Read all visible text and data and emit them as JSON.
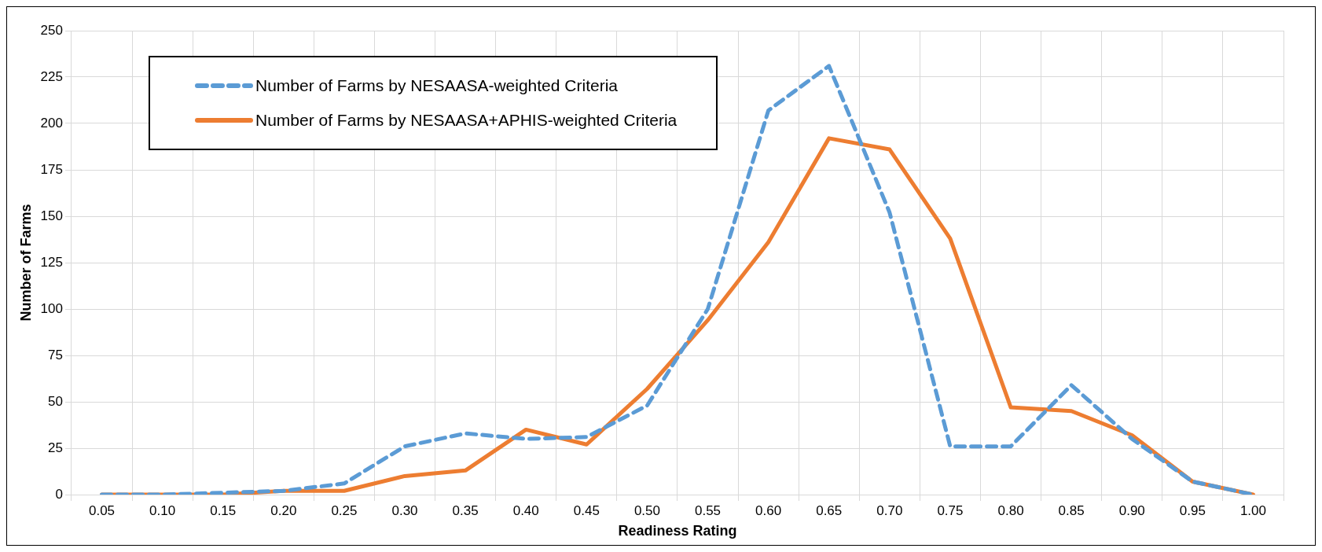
{
  "chart_data": {
    "type": "line",
    "xlabel": "Readiness Rating",
    "ylabel": "Number of Farms",
    "categories": [
      "0.05",
      "0.10",
      "0.15",
      "0.20",
      "0.25",
      "0.30",
      "0.35",
      "0.40",
      "0.45",
      "0.50",
      "0.55",
      "0.60",
      "0.65",
      "0.70",
      "0.75",
      "0.80",
      "0.85",
      "0.90",
      "0.95",
      "1.00"
    ],
    "series": [
      {
        "name": "Number of Farms by NESAASA-weighted Criteria",
        "color": "#5b9bd5",
        "line_style": "dashed",
        "values": [
          0,
          0,
          1,
          2,
          6,
          26,
          33,
          30,
          31,
          48,
          100,
          207,
          231,
          152,
          26,
          26,
          59,
          30,
          7,
          0
        ]
      },
      {
        "name": "Number of Farms by NESAASA+APHIS-weighted Criteria",
        "color": "#ed7d31",
        "line_style": "solid",
        "values": [
          0,
          0,
          0,
          2,
          2,
          10,
          13,
          35,
          27,
          57,
          94,
          136,
          192,
          186,
          138,
          47,
          45,
          32,
          7,
          0
        ]
      }
    ],
    "ylim": [
      0,
      250
    ],
    "yticks": [
      0,
      25,
      50,
      75,
      100,
      125,
      150,
      175,
      200,
      225,
      250
    ],
    "grid": true,
    "legend": "top left",
    "marker": "none"
  }
}
